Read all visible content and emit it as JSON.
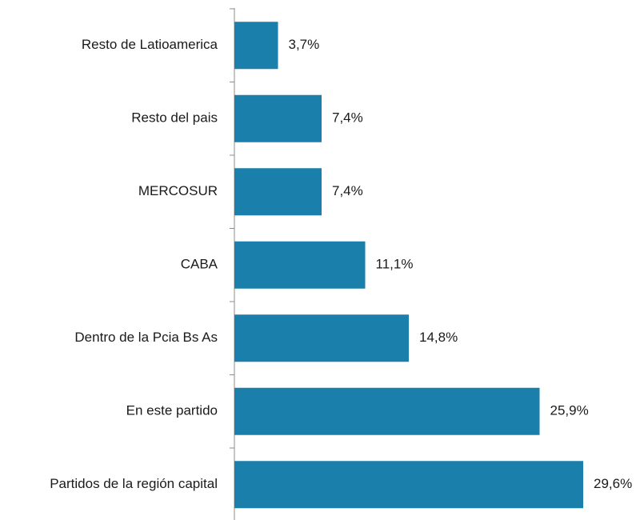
{
  "chart_data": {
    "type": "hbar",
    "categories": [
      "Resto de Latioamerica",
      "Resto del pais",
      "MERCOSUR",
      "CABA",
      "Dentro de la Pcia Bs As",
      "En este partido",
      "Partidos de la región capital"
    ],
    "values": [
      3.7,
      7.4,
      7.4,
      11.1,
      14.8,
      25.9,
      29.6
    ],
    "value_labels": [
      "3,7%",
      "7,4%",
      "7,4%",
      "11,1%",
      "14,8%",
      "25,9%",
      "29,6%"
    ],
    "color": "#1a7fab"
  }
}
